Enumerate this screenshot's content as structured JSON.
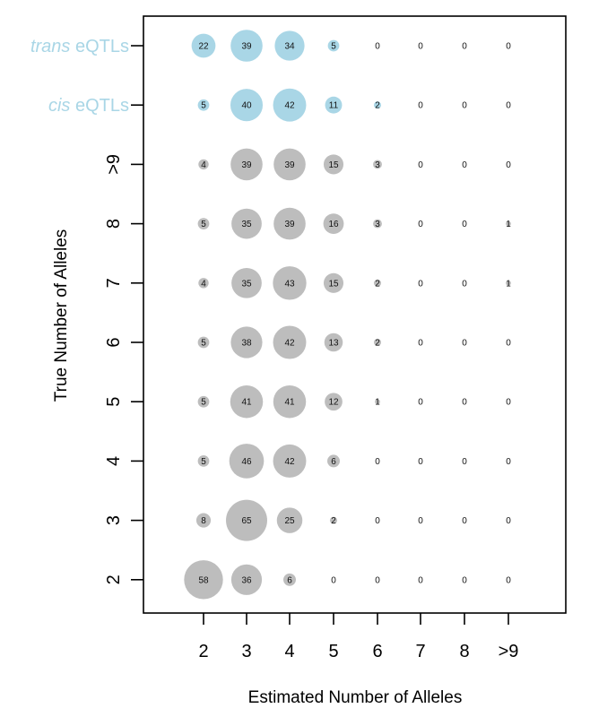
{
  "chart_data": {
    "type": "scatter",
    "xlabel": "Estimated Number of Alleles",
    "ylabel": "True Number of Alleles",
    "x_categories": [
      "2",
      "3",
      "4",
      "5",
      "6",
      "7",
      "8",
      ">9"
    ],
    "y_categories": [
      "2",
      "3",
      "4",
      "5",
      "6",
      "7",
      "8",
      ">9",
      "cis eQTLs",
      "trans eQTLs"
    ],
    "y_label_parts": [
      {
        "italic": "",
        "rest": "2"
      },
      {
        "italic": "",
        "rest": "3"
      },
      {
        "italic": "",
        "rest": "4"
      },
      {
        "italic": "",
        "rest": "5"
      },
      {
        "italic": "",
        "rest": "6"
      },
      {
        "italic": "",
        "rest": "7"
      },
      {
        "italic": "",
        "rest": "8"
      },
      {
        "italic": "",
        "rest": ">9"
      },
      {
        "italic": "cis",
        "rest": " eQTLs"
      },
      {
        "italic": "trans",
        "rest": " eQTLs"
      }
    ],
    "rows": [
      {
        "y": "2",
        "color": "#bdbdbd",
        "values": [
          58,
          36,
          6,
          0,
          0,
          0,
          0,
          0
        ]
      },
      {
        "y": "3",
        "color": "#bdbdbd",
        "values": [
          8,
          65,
          25,
          2,
          0,
          0,
          0,
          0
        ]
      },
      {
        "y": "4",
        "color": "#bdbdbd",
        "values": [
          5,
          46,
          42,
          6,
          0,
          0,
          0,
          0
        ]
      },
      {
        "y": "5",
        "color": "#bdbdbd",
        "values": [
          5,
          41,
          41,
          12,
          1,
          0,
          0,
          0
        ]
      },
      {
        "y": "6",
        "color": "#bdbdbd",
        "values": [
          5,
          38,
          42,
          13,
          2,
          0,
          0,
          0
        ]
      },
      {
        "y": "7",
        "color": "#bdbdbd",
        "values": [
          4,
          35,
          43,
          15,
          2,
          0,
          0,
          1
        ]
      },
      {
        "y": "8",
        "color": "#bdbdbd",
        "values": [
          5,
          35,
          39,
          16,
          3,
          0,
          0,
          1
        ]
      },
      {
        "y": ">9",
        "color": "#bdbdbd",
        "values": [
          4,
          39,
          39,
          15,
          3,
          0,
          0,
          0
        ]
      },
      {
        "y": "cis eQTLs",
        "color": "#a9d6e6",
        "values": [
          5,
          40,
          42,
          11,
          2,
          0,
          0,
          0
        ]
      },
      {
        "y": "trans eQTLs",
        "color": "#a9d6e6",
        "values": [
          22,
          39,
          34,
          5,
          0,
          0,
          0,
          0
        ]
      }
    ],
    "colors": {
      "true_alleles": "#bdbdbd",
      "eqtl": "#a9d6e6",
      "eqtl_label": "#a9d6e6",
      "axis": "#000000"
    },
    "grid": false,
    "legend": "none"
  }
}
